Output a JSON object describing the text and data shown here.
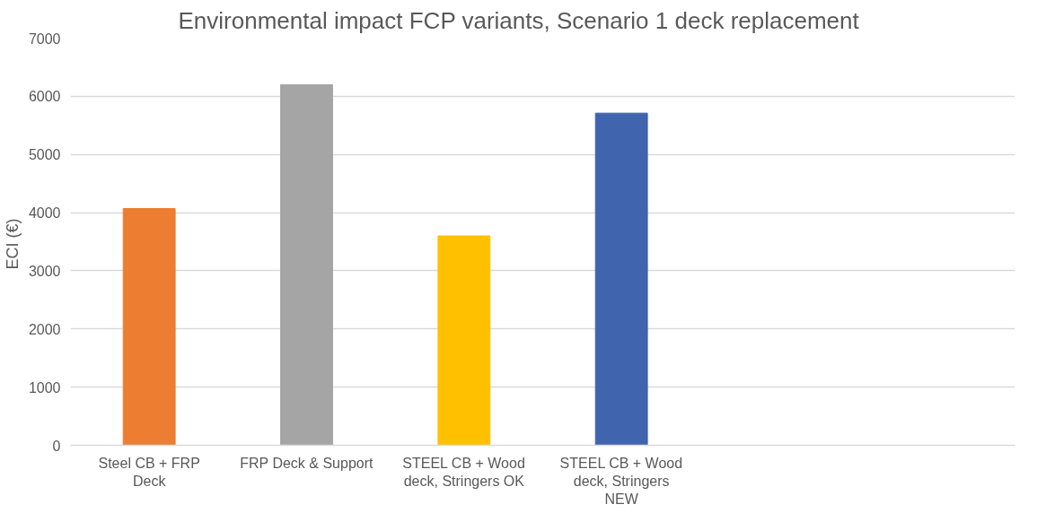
{
  "chart_data": {
    "type": "bar",
    "title": "Environmental impact FCP variants, Scenario 1 deck replacement",
    "ylabel": "ECI  (€)",
    "categories": [
      "Steel CB + FRP Deck",
      "FRP Deck & Support",
      "STEEL CB + Wood deck, Stringers OK",
      "STEEL CB + Wood deck, Stringers NEW",
      null,
      null
    ],
    "values": [
      4070,
      6200,
      3600,
      5710,
      null,
      null
    ],
    "colors": [
      "#ed7d31",
      "#a5a5a5",
      "#ffc000",
      "#4064ad",
      null,
      null
    ],
    "ylim": [
      0,
      7000
    ],
    "yticks": [
      0,
      1000,
      2000,
      3000,
      4000,
      5000,
      6000,
      7000
    ],
    "grid": "y"
  }
}
